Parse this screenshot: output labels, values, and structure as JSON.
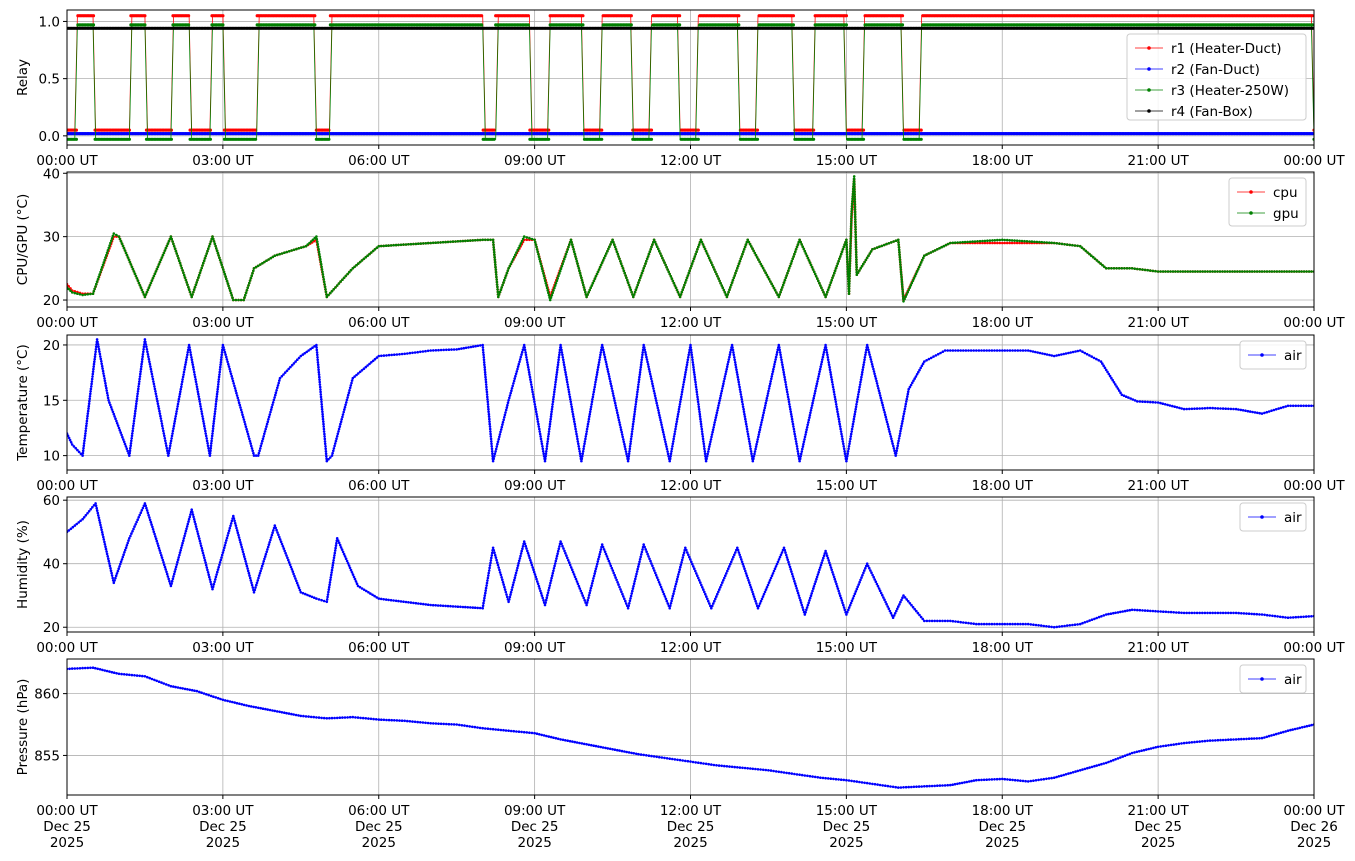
{
  "chart_data": [
    {
      "type": "line",
      "ylabel": "Relay",
      "ylim": [
        -0.08,
        1.1
      ],
      "yticks": [
        0.0,
        0.5,
        1.0
      ],
      "ytick_labels": [
        "0.0",
        "0.5",
        "1.0"
      ],
      "x_tick_labels": [
        "00:00 UT",
        "03:00 UT",
        "06:00 UT",
        "09:00 UT",
        "12:00 UT",
        "15:00 UT",
        "18:00 UT",
        "21:00 UT",
        "00:00 UT"
      ],
      "grid": true,
      "legend_position": "right",
      "heater_on_intervals_hours": [
        [
          0.2,
          0.52
        ],
        [
          1.22,
          1.52
        ],
        [
          2.02,
          2.35
        ],
        [
          2.78,
          3.02
        ],
        [
          3.65,
          4.78
        ],
        [
          5.05,
          8.0
        ],
        [
          8.25,
          8.9
        ],
        [
          9.28,
          9.95
        ],
        [
          10.3,
          10.88
        ],
        [
          11.25,
          11.8
        ],
        [
          12.15,
          12.95
        ],
        [
          13.3,
          14.0
        ],
        [
          14.38,
          15.0
        ],
        [
          15.35,
          16.1
        ],
        [
          16.45,
          24.0
        ]
      ],
      "series": [
        {
          "name": "r1 (Heater-Duct)",
          "color": "#ff0000",
          "values_on": 1.05,
          "values_off": 0.05
        },
        {
          "name": "r2 (Fan-Duct)",
          "color": "#0000ff",
          "values_on": 0.02,
          "values_off": 0.02
        },
        {
          "name": "r3 (Heater-250W)",
          "color": "#008000",
          "values_on": 0.97,
          "values_off": -0.03
        },
        {
          "name": "r4 (Fan-Box)",
          "color": "#000000",
          "values_on": 0.94,
          "values_off": 0.94
        }
      ]
    },
    {
      "type": "line",
      "ylabel": "CPU/GPU (°C)",
      "ylim": [
        18.9,
        40.2
      ],
      "yticks": [
        20,
        30,
        40
      ],
      "ytick_labels": [
        "20",
        "30",
        "40"
      ],
      "x_tick_labels": [
        "00:00 UT",
        "03:00 UT",
        "06:00 UT",
        "09:00 UT",
        "12:00 UT",
        "15:00 UT",
        "18:00 UT",
        "21:00 UT",
        "00:00 UT"
      ],
      "grid": true,
      "legend_position": "top-right",
      "x_hours": [
        0,
        0.1,
        0.3,
        0.5,
        0.9,
        1.0,
        1.5,
        2.0,
        2.4,
        2.8,
        3.2,
        3.4,
        3.6,
        4.0,
        4.6,
        4.8,
        5.0,
        5.5,
        6.0,
        7.0,
        8.0,
        8.2,
        8.3,
        8.5,
        8.8,
        9.0,
        9.3,
        9.7,
        10.0,
        10.5,
        10.9,
        11.3,
        11.8,
        12.2,
        12.7,
        13.1,
        13.7,
        14.1,
        14.6,
        15.0,
        15.05,
        15.1,
        15.15,
        15.2,
        15.5,
        16.0,
        16.1,
        16.5,
        17.0,
        18.0,
        19.0,
        19.5,
        20.0,
        20.5,
        21.0,
        22.0,
        23.0,
        24.0
      ],
      "series": [
        {
          "name": "cpu",
          "color": "#ff0000",
          "values": [
            22.5,
            21.5,
            21,
            21,
            30,
            30,
            20.5,
            30,
            20.5,
            30,
            20,
            20,
            25,
            27,
            28.5,
            29.5,
            20.5,
            25,
            28.5,
            29,
            29.5,
            29.5,
            20.5,
            25,
            29.5,
            29.5,
            20.5,
            29.5,
            20.5,
            29.5,
            20.5,
            29.5,
            20.5,
            29.5,
            20.5,
            29.5,
            20.5,
            29.5,
            20.5,
            29.5,
            21,
            33,
            39,
            24,
            28,
            29.5,
            20,
            27,
            29,
            29,
            29,
            28.5,
            25,
            25,
            24.5,
            24.5,
            24.5,
            24.5
          ]
        },
        {
          "name": "gpu",
          "color": "#008000",
          "values": [
            22,
            21.2,
            20.8,
            21,
            30.5,
            30,
            20.5,
            30,
            20.5,
            30,
            20,
            20,
            25,
            27,
            28.5,
            30,
            20.5,
            25,
            28.5,
            29,
            29.5,
            29.5,
            20.5,
            25,
            30,
            29.5,
            20,
            29.5,
            20.5,
            29.5,
            20.5,
            29.5,
            20.5,
            29.5,
            20.5,
            29.5,
            20.5,
            29.5,
            20.5,
            29.5,
            21,
            34,
            39.5,
            24,
            28,
            29.5,
            19.8,
            27,
            29,
            29.5,
            29,
            28.5,
            25,
            25,
            24.5,
            24.5,
            24.5,
            24.5
          ]
        }
      ]
    },
    {
      "type": "line",
      "ylabel": "Temperature (°C)",
      "ylim": [
        8.7,
        20.9
      ],
      "yticks": [
        10,
        15,
        20
      ],
      "ytick_labels": [
        "10",
        "15",
        "20"
      ],
      "x_tick_labels": [
        "00:00 UT",
        "03:00 UT",
        "06:00 UT",
        "09:00 UT",
        "12:00 UT",
        "15:00 UT",
        "18:00 UT",
        "21:00 UT",
        "00:00 UT"
      ],
      "grid": true,
      "legend_position": "top-right",
      "x_hours": [
        0,
        0.1,
        0.2,
        0.3,
        0.58,
        0.8,
        1.2,
        1.5,
        1.95,
        2.35,
        2.75,
        3.0,
        3.3,
        3.6,
        3.68,
        4.1,
        4.5,
        4.8,
        5.0,
        5.1,
        5.5,
        6.0,
        6.5,
        7.0,
        7.5,
        8.0,
        8.2,
        8.5,
        8.8,
        9.2,
        9.5,
        9.9,
        10.3,
        10.8,
        11.1,
        11.6,
        12.0,
        12.3,
        12.8,
        13.2,
        13.7,
        14.1,
        14.6,
        15.0,
        15.4,
        15.95,
        16.2,
        16.5,
        16.9,
        17.5,
        18.0,
        18.5,
        19.0,
        19.5,
        19.9,
        20.3,
        20.6,
        21.0,
        21.5,
        22.0,
        22.5,
        23.0,
        23.5,
        24.0
      ],
      "series": [
        {
          "name": "air",
          "color": "#0000ff",
          "values": [
            12,
            11,
            10.5,
            10,
            20.5,
            15,
            10,
            20.5,
            10,
            20,
            10,
            20,
            15,
            10,
            10,
            17,
            19,
            20,
            9.5,
            10,
            17,
            19,
            19.2,
            19.5,
            19.6,
            20,
            9.5,
            15,
            20,
            9.5,
            20,
            9.5,
            20,
            9.5,
            20,
            9.5,
            20,
            9.5,
            20,
            9.5,
            20,
            9.5,
            20,
            9.5,
            20,
            10,
            16,
            18.5,
            19.5,
            19.5,
            19.5,
            19.5,
            19,
            19.5,
            18.5,
            15.5,
            14.9,
            14.8,
            14.2,
            14.3,
            14.2,
            13.8,
            14.5,
            14.5
          ]
        }
      ]
    },
    {
      "type": "line",
      "ylabel": "Humidity (%)",
      "ylim": [
        18.5,
        61
      ],
      "yticks": [
        20,
        40,
        60
      ],
      "ytick_labels": [
        "20",
        "40",
        "60"
      ],
      "x_tick_labels": [
        "00:00 UT",
        "03:00 UT",
        "06:00 UT",
        "09:00 UT",
        "12:00 UT",
        "15:00 UT",
        "18:00 UT",
        "21:00 UT",
        "00:00 UT"
      ],
      "grid": true,
      "legend_position": "top-right",
      "x_hours": [
        0,
        0.3,
        0.55,
        0.9,
        1.2,
        1.5,
        2.0,
        2.4,
        2.8,
        3.2,
        3.6,
        4.0,
        4.5,
        4.8,
        5.0,
        5.2,
        5.6,
        6.0,
        7.0,
        8.0,
        8.2,
        8.5,
        8.8,
        9.2,
        9.5,
        10.0,
        10.3,
        10.8,
        11.1,
        11.6,
        11.9,
        12.4,
        12.9,
        13.3,
        13.8,
        14.2,
        14.6,
        15.0,
        15.4,
        15.9,
        16.1,
        16.5,
        17.0,
        17.5,
        18.0,
        18.5,
        19.0,
        19.5,
        20.0,
        20.5,
        21.0,
        21.5,
        22.0,
        22.5,
        23.0,
        23.5,
        24.0
      ],
      "series": [
        {
          "name": "air",
          "color": "#0000ff",
          "values": [
            50,
            54,
            59,
            34,
            48,
            59,
            33,
            57,
            32,
            55,
            31,
            52,
            31,
            29,
            28,
            48,
            33,
            29,
            27,
            26,
            45,
            28,
            47,
            27,
            47,
            27,
            46,
            26,
            46,
            26,
            45,
            26,
            45,
            26,
            45,
            24,
            44,
            24,
            40,
            23,
            30,
            22,
            22,
            21,
            21,
            21,
            20,
            21,
            24,
            25.5,
            25,
            24.5,
            24.5,
            24.5,
            24,
            23,
            23.5
          ]
        }
      ]
    },
    {
      "type": "line",
      "ylabel": "Pressure (hPa)",
      "ylim": [
        851.8,
        862.8
      ],
      "yticks": [
        855,
        860
      ],
      "ytick_labels": [
        "855",
        "860"
      ],
      "x_tick_labels": [
        "00:00 UT\nDec 25\n2025",
        "03:00 UT\nDec 25\n2025",
        "06:00 UT\nDec 25\n2025",
        "09:00 UT\nDec 25\n2025",
        "12:00 UT\nDec 25\n2025",
        "15:00 UT\nDec 25\n2025",
        "18:00 UT\nDec 25\n2025",
        "21:00 UT\nDec 25\n2025",
        "00:00 UT\nDec 26\n2025"
      ],
      "grid": true,
      "legend_position": "top-right",
      "x_hours": [
        0,
        0.5,
        1.0,
        1.5,
        2.0,
        2.5,
        3.0,
        3.5,
        4.0,
        4.5,
        5.0,
        5.5,
        6.0,
        6.5,
        7.0,
        7.5,
        8.0,
        8.5,
        9.0,
        9.5,
        10.0,
        10.5,
        11.0,
        11.5,
        12.0,
        12.5,
        13.0,
        13.5,
        14.0,
        14.5,
        15.0,
        15.5,
        16.0,
        16.5,
        17.0,
        17.5,
        18.0,
        18.5,
        19.0,
        19.5,
        20.0,
        20.5,
        21.0,
        21.5,
        22.0,
        22.5,
        23.0,
        23.5,
        24.0
      ],
      "series": [
        {
          "name": "air",
          "color": "#0000ff",
          "values": [
            862.0,
            862.1,
            861.6,
            861.4,
            860.6,
            860.2,
            859.5,
            859.0,
            858.6,
            858.2,
            858.0,
            858.1,
            857.9,
            857.8,
            857.6,
            857.5,
            857.2,
            857.0,
            856.8,
            856.3,
            855.9,
            855.5,
            855.1,
            854.8,
            854.5,
            854.2,
            854.0,
            853.8,
            853.5,
            853.2,
            853.0,
            852.7,
            852.4,
            852.5,
            852.6,
            853.0,
            853.1,
            852.9,
            853.2,
            853.8,
            854.4,
            855.2,
            855.7,
            856.0,
            856.2,
            856.3,
            856.4,
            857.0,
            857.5
          ]
        }
      ]
    }
  ]
}
